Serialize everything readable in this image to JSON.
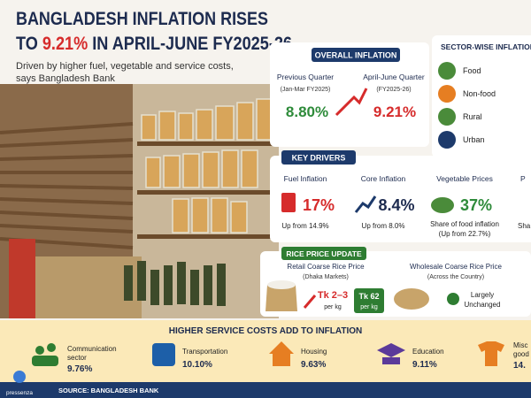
{
  "header": {
    "title_line1": "BANGLADESH INFLATION RISES",
    "title_line2_prefix": "TO ",
    "title_line2_highlight": "9.21%",
    "title_line2_suffix": " IN APRIL-JUNE FY2025-26",
    "subtitle_line1": "Driven by higher fuel, vegetable and service costs,",
    "subtitle_line2": "says Bangladesh Bank"
  },
  "overall_inflation": {
    "heading": "OVERALL INFLATION",
    "previous": {
      "label": "Previous Quarter",
      "period": "(Jan-Mar FY2025)",
      "value": "8.80%"
    },
    "current": {
      "label": "April-June Quarter",
      "period": "(FY2025-26)",
      "value": "9.21%"
    }
  },
  "sector_wise": {
    "heading": "SECTOR-WISE INFLATION (",
    "items": [
      "Food",
      "Non-food",
      "Rural",
      "Urban"
    ]
  },
  "key_drivers": {
    "heading": "KEY DRIVERS",
    "items": [
      {
        "label": "Fuel Inflation",
        "value": "17%",
        "note": "Up from 14.9%"
      },
      {
        "label": "Core Inflation",
        "value": "8.4%",
        "note": "Up from 8.0%"
      },
      {
        "label": "Vegetable Prices",
        "value": "37%",
        "note": "Share of food inflation",
        "note2": "(Up from 22.7%)"
      },
      {
        "label": "P",
        "note": "Sha"
      }
    ]
  },
  "rice": {
    "heading": "RICE PRICE UPDATE",
    "retail": {
      "label": "Retail Coarse Rice Price",
      "area": "(Dhaka Markets)",
      "change": "Tk 2–3",
      "change_unit": "per kg",
      "price": "Tk 62",
      "price_unit": "per kg"
    },
    "wholesale": {
      "label": "Wholesale Coarse Rice Price",
      "area": "(Across the Country)",
      "status_line1": "Largely",
      "status_line2": "Unchanged"
    }
  },
  "services": {
    "heading": "HIGHER SERVICE COSTS ADD TO INFLATION",
    "items": [
      {
        "label": "Communication",
        "label2": "sector",
        "value": "9.76%"
      },
      {
        "label": "Transportation",
        "value": "10.10%"
      },
      {
        "label": "Housing",
        "value": "9.63%"
      },
      {
        "label": "Education",
        "value": "9.11%"
      },
      {
        "label": "Misc",
        "label2": "good",
        "value": "14."
      }
    ]
  },
  "footer": {
    "source": "SOURCE: BANGLADESH BANK",
    "logo": "pressenza"
  }
}
